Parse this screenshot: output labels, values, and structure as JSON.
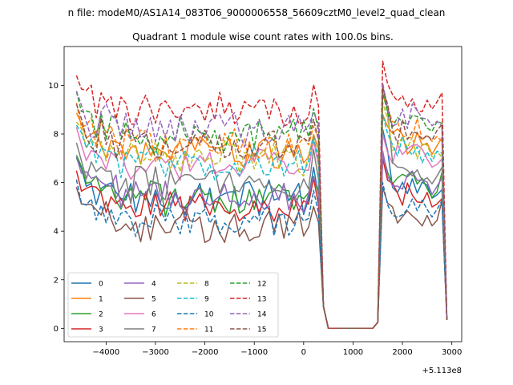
{
  "chart_data": {
    "type": "line",
    "suptitle": "n file: modeM0/AS1A14_083T06_9000006558_56609cztM0_level2_quad_clean",
    "title": "Quadrant 1 module wise count rates with 100.0s bins.",
    "xlabel": "",
    "ylabel": "",
    "x_offset_label": "+5.113e8",
    "xlim": [
      -4850,
      3200
    ],
    "ylim": [
      -0.55,
      11.6
    ],
    "xticks": [
      -4000,
      -3000,
      -2000,
      -1000,
      0,
      1000,
      2000,
      3000
    ],
    "xtick_labels": [
      "−4000",
      "−3000",
      "−2000",
      "−1000",
      "0",
      "1000",
      "2000",
      "3000"
    ],
    "yticks": [
      0,
      2,
      4,
      6,
      8,
      10
    ],
    "ytick_labels": [
      "0",
      "2",
      "4",
      "6",
      "8",
      "10"
    ],
    "legend_position": "lower-left",
    "x": {
      "segments": [
        {
          "start": -4600,
          "end": 300,
          "step": 100
        },
        {
          "start": 400,
          "end": 1500,
          "step": 100
        },
        {
          "start": 1600,
          "end": 2900,
          "step": 100
        }
      ]
    },
    "series": [
      {
        "name": "0",
        "color": "#1f77b4",
        "style": "solid",
        "level": 5.4,
        "peak": 8.2
      },
      {
        "name": "1",
        "color": "#ff7f0e",
        "style": "solid",
        "level": 7.2,
        "peak": 8.8
      },
      {
        "name": "2",
        "color": "#2ca02c",
        "style": "solid",
        "level": 5.4,
        "peak": 7.2
      },
      {
        "name": "3",
        "color": "#d62728",
        "style": "solid",
        "level": 5.0,
        "peak": 7.0
      },
      {
        "name": "4",
        "color": "#9467bd",
        "style": "solid",
        "level": 5.5,
        "peak": 7.3
      },
      {
        "name": "5",
        "color": "#8c564b",
        "style": "solid",
        "level": 4.2,
        "peak": 5.8
      },
      {
        "name": "6",
        "color": "#e377c2",
        "style": "solid",
        "level": 6.6,
        "peak": 8.0
      },
      {
        "name": "7",
        "color": "#7f7f7f",
        "style": "solid",
        "level": 5.9,
        "peak": 10.0
      },
      {
        "name": "8",
        "color": "#bcbd22",
        "style": "dashed",
        "level": 7.0,
        "peak": 9.3
      },
      {
        "name": "9",
        "color": "#17becf",
        "style": "dashed",
        "level": 6.8,
        "peak": 8.8
      },
      {
        "name": "10",
        "color": "#1f77b4",
        "style": "dashed",
        "level": 4.5,
        "peak": 6.0
      },
      {
        "name": "11",
        "color": "#ff7f0e",
        "style": "dashed",
        "level": 7.6,
        "peak": 9.6
      },
      {
        "name": "12",
        "color": "#2ca02c",
        "style": "dashed",
        "level": 8.0,
        "peak": 9.7
      },
      {
        "name": "13",
        "color": "#d62728",
        "style": "dashed",
        "level": 8.9,
        "peak": 11.0
      },
      {
        "name": "14",
        "color": "#9467bd",
        "style": "dashed",
        "level": 8.2,
        "peak": 10.1
      },
      {
        "name": "15",
        "color": "#8c564b",
        "style": "dashed",
        "level": 7.6,
        "peak": 9.9
      }
    ],
    "gap_value": 0.0
  }
}
